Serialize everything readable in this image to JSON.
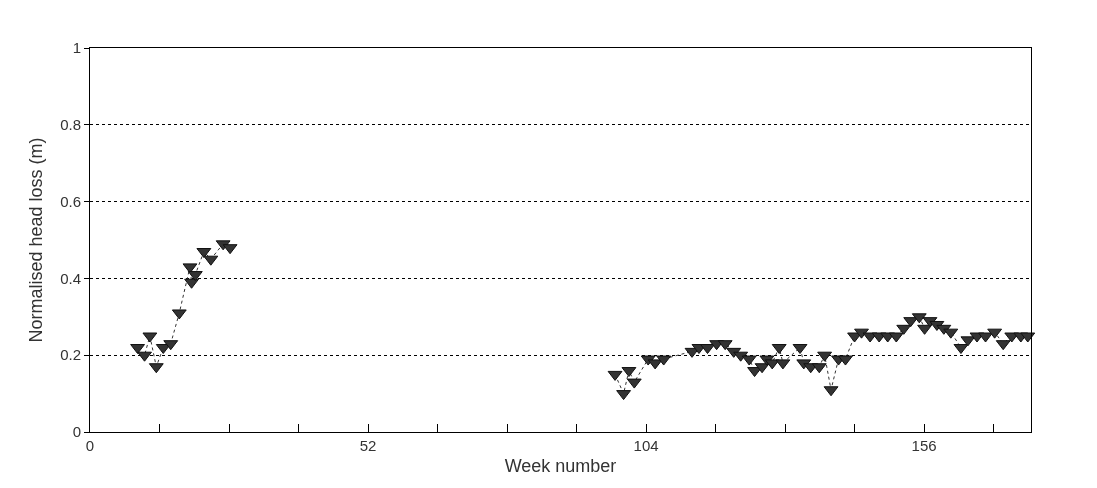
{
  "chart_data": {
    "type": "line",
    "xlabel": "Week number",
    "ylabel": "Normalised head loss (m)",
    "x": [
      8.9,
      10.2,
      11.2,
      12.4,
      13.7,
      15.1,
      16.7,
      18.7,
      19.0,
      19.7,
      21.3,
      22.6,
      24.9,
      26.2,
      60,
      98.2,
      99.8,
      100.8,
      101.8,
      104.4,
      105.7,
      107.3,
      112.6,
      113.9,
      115.5,
      117.2,
      118.8,
      120.4,
      121.7,
      123.3,
      124.3,
      125.7,
      126.6,
      127.6,
      128.9,
      129.6,
      132.8,
      133.5,
      134.8,
      136.4,
      137.4,
      138.6,
      140.0,
      141.3,
      143.0,
      144.3,
      145.9,
      147.6,
      149.2,
      150.8,
      152.2,
      153.5,
      155.1,
      156.1,
      157.1,
      158.4,
      159.7,
      161.0,
      162.9,
      164.2,
      165.9,
      167.5,
      169.2,
      170.8,
      172.4,
      174.1,
      175.4
    ],
    "series": [
      {
        "color": "#333333",
        "values": [
          0.22,
          0.2,
          0.25,
          0.17,
          0.22,
          0.23,
          0.31,
          0.43,
          0.39,
          0.41,
          0.47,
          0.45,
          0.49,
          0.48,
          null,
          0.15,
          0.1,
          0.16,
          0.13,
          0.19,
          0.18,
          0.19,
          0.21,
          0.22,
          0.22,
          0.23,
          0.23,
          0.21,
          0.2,
          0.19,
          0.16,
          0.17,
          0.19,
          0.18,
          0.22,
          0.18,
          0.22,
          0.18,
          0.17,
          0.17,
          0.2,
          0.11,
          0.19,
          0.19,
          0.25,
          0.26,
          0.25,
          0.25,
          0.25,
          0.25,
          0.27,
          0.29,
          0.3,
          0.27,
          0.29,
          0.28,
          0.27,
          0.26,
          0.22,
          0.24,
          0.25,
          0.25,
          0.26,
          0.23,
          0.25,
          0.25,
          0.25
        ]
      }
    ],
    "xlim": [
      0,
      176
    ],
    "xticks": [
      0,
      {
        "value": 13,
        "label": null
      },
      {
        "value": 26,
        "label": null
      },
      {
        "value": 39,
        "label": null
      },
      52,
      {
        "value": 65,
        "label": null
      },
      {
        "value": 78,
        "label": null
      },
      {
        "value": 91,
        "label": null
      },
      104,
      {
        "value": 117,
        "label": null
      },
      {
        "value": 130,
        "label": null
      },
      {
        "value": 143,
        "label": null
      },
      156,
      {
        "value": 169,
        "label": null
      }
    ],
    "ylim": [
      0,
      1
    ],
    "yticks": [
      0,
      0.2,
      0.4,
      0.6,
      0.8,
      1
    ],
    "grid": "y",
    "marker": "triangle",
    "line_style": "dotted"
  }
}
